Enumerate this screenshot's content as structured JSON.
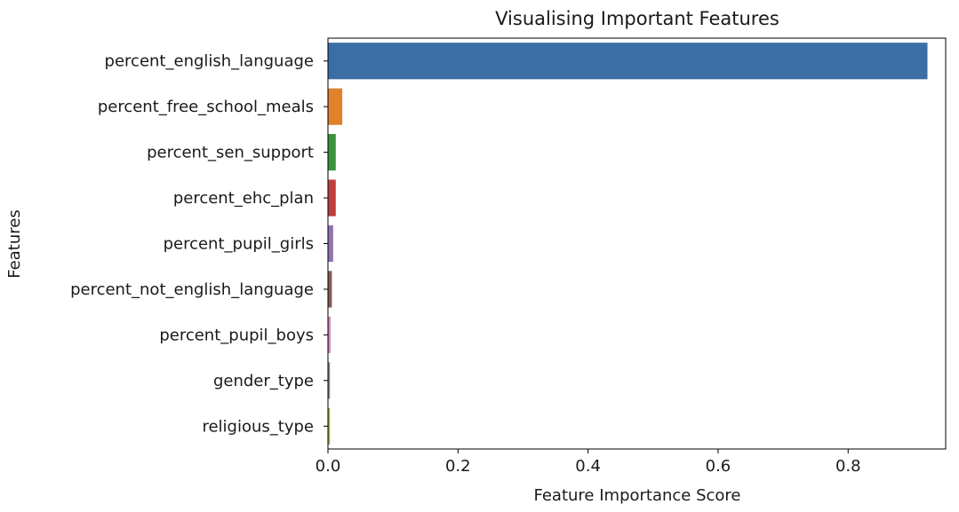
{
  "chart_data": {
    "type": "bar",
    "orientation": "horizontal",
    "title": "Visualising Important Features",
    "xlabel": "Feature Importance Score",
    "ylabel": "Features",
    "xlim": [
      0,
      0.95
    ],
    "xticks": [
      0.0,
      0.2,
      0.4,
      0.6,
      0.8
    ],
    "xtick_labels": [
      "0.0",
      "0.2",
      "0.4",
      "0.6",
      "0.8"
    ],
    "grid": false,
    "categories": [
      "percent_english_language",
      "percent_free_school_meals",
      "percent_sen_support",
      "percent_ehc_plan",
      "percent_pupil_girls",
      "percent_not_english_language",
      "percent_pupil_boys",
      "gender_type",
      "religious_type"
    ],
    "values": [
      0.922,
      0.022,
      0.012,
      0.012,
      0.008,
      0.006,
      0.004,
      0.003,
      0.003
    ],
    "colors": [
      "#3b6ea5",
      "#e1812c",
      "#3a923a",
      "#c03d3e",
      "#9372b2",
      "#845b53",
      "#d684bd",
      "#7f7f7f",
      "#a9aa35"
    ]
  }
}
